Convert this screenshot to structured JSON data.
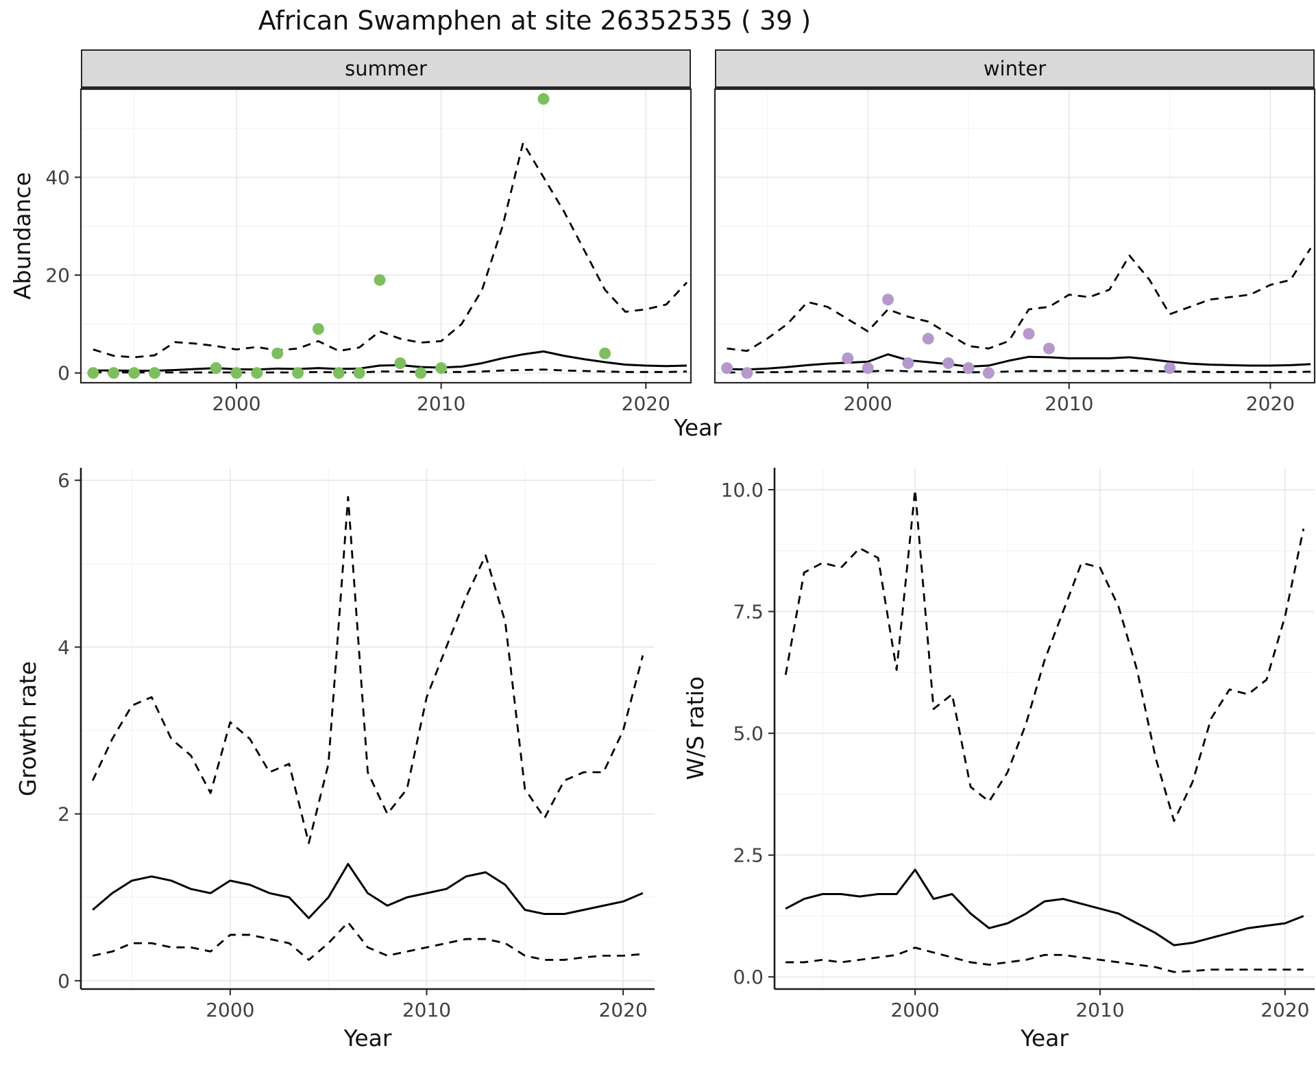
{
  "title": "African Swamphen at site 26352535 ( 39 )",
  "facets": {
    "summer": "summer",
    "winter": "winter"
  },
  "labels": {
    "abundance": "Abundance",
    "year": "Year",
    "growth_rate": "Growth rate",
    "ws_ratio": "W/S ratio"
  },
  "colors": {
    "summer_point": "#7dbf5e",
    "winter_point": "#b598cc",
    "line": "#000000",
    "grid_major": "#e7e7e7",
    "grid_minor": "#f3f3f3",
    "panel_border": "#262626",
    "axis_line": "#1a1a1a",
    "strip_bg": "#d9d9d9",
    "tick_text": "#404040"
  },
  "chart_data": [
    {
      "id": "summer",
      "type": "scatter+line",
      "facet_label": "summer",
      "xlabel": "Year",
      "ylabel": "Abundance",
      "xlim": [
        1992.4,
        2022.2
      ],
      "ylim": [
        -2,
        58
      ],
      "xticks": [
        2000,
        2010,
        2020
      ],
      "xtick_labels": [
        "2000",
        "2010",
        "2020"
      ],
      "xticks_minor": [
        1995,
        2005,
        2015
      ],
      "yticks": [
        0,
        20,
        40
      ],
      "ytick_labels": [
        "0",
        "20",
        "40"
      ],
      "yticks_minor": [
        10,
        30,
        50
      ],
      "show_y_labels": true,
      "point_color": "#7dbf5e",
      "points": {
        "x": [
          1993,
          1994,
          1995,
          1996,
          1999,
          2000,
          2001,
          2002,
          2003,
          2004,
          2005,
          2006,
          2007,
          2008,
          2009,
          2010,
          2015,
          2018
        ],
        "y": [
          0,
          0,
          0,
          0,
          1,
          0,
          0,
          4,
          0,
          9,
          0,
          0,
          19,
          2,
          0,
          1,
          56,
          4
        ]
      },
      "fit": {
        "x": [
          1993,
          1994,
          1995,
          1996,
          1997,
          1998,
          1999,
          2000,
          2001,
          2002,
          2003,
          2004,
          2005,
          2006,
          2007,
          2008,
          2009,
          2010,
          2011,
          2012,
          2013,
          2014,
          2015,
          2016,
          2017,
          2018,
          2019,
          2020,
          2021,
          2022
        ],
        "y": [
          0.5,
          0.5,
          0.45,
          0.45,
          0.6,
          0.8,
          1.0,
          0.75,
          0.7,
          0.9,
          0.8,
          1.0,
          0.8,
          0.9,
          1.5,
          1.6,
          1.2,
          1.1,
          1.3,
          2.0,
          3.0,
          3.8,
          4.4,
          3.5,
          2.8,
          2.2,
          1.7,
          1.5,
          1.4,
          1.5
        ]
      },
      "upper": {
        "x": [
          1993,
          1994,
          1995,
          1996,
          1997,
          1998,
          1999,
          2000,
          2001,
          2002,
          2003,
          2004,
          2005,
          2006,
          2007,
          2008,
          2009,
          2010,
          2011,
          2012,
          2013,
          2014,
          2015,
          2016,
          2017,
          2018,
          2019,
          2020,
          2021,
          2022
        ],
        "y": [
          4.8,
          3.5,
          3.2,
          3.6,
          6.3,
          6.0,
          5.5,
          4.8,
          5.3,
          4.6,
          5.0,
          6.5,
          4.5,
          5.2,
          8.5,
          7.0,
          6.2,
          6.5,
          10,
          17,
          30,
          47,
          40,
          33,
          25,
          17,
          12.5,
          13,
          14,
          18.5
        ]
      },
      "lower": {
        "x": [
          1993,
          1994,
          1995,
          1996,
          1997,
          1998,
          1999,
          2000,
          2001,
          2002,
          2003,
          2004,
          2005,
          2006,
          2007,
          2008,
          2009,
          2010,
          2011,
          2012,
          2013,
          2014,
          2015,
          2016,
          2017,
          2018,
          2019,
          2020,
          2021,
          2022
        ],
        "y": [
          0.1,
          0.1,
          0.1,
          0.1,
          0.1,
          0.1,
          0.1,
          0.1,
          0.1,
          0.1,
          0.1,
          0.2,
          0.1,
          0.1,
          0.3,
          0.3,
          0.2,
          0.2,
          0.2,
          0.3,
          0.5,
          0.6,
          0.7,
          0.5,
          0.4,
          0.3,
          0.2,
          0.2,
          0.2,
          0.3
        ]
      }
    },
    {
      "id": "winter",
      "type": "scatter+line",
      "facet_label": "winter",
      "xlabel": "Year",
      "ylabel": "Abundance",
      "xlim": [
        1992.4,
        2022.2
      ],
      "ylim": [
        -2,
        58
      ],
      "xticks": [
        2000,
        2010,
        2020
      ],
      "xtick_labels": [
        "2000",
        "2010",
        "2020"
      ],
      "xticks_minor": [
        1995,
        2005,
        2015
      ],
      "yticks": [
        0,
        20,
        40
      ],
      "ytick_labels": [
        "0",
        "20",
        "40"
      ],
      "yticks_minor": [
        10,
        30,
        50
      ],
      "show_y_labels": false,
      "point_color": "#b598cc",
      "points": {
        "x": [
          1993,
          1994,
          1999,
          2000,
          2001,
          2002,
          2003,
          2004,
          2005,
          2006,
          2008,
          2009,
          2015
        ],
        "y": [
          1,
          0,
          3,
          1,
          15,
          2,
          7,
          2,
          1,
          0,
          8,
          5,
          1
        ]
      },
      "fit": {
        "x": [
          1993,
          1994,
          1995,
          1996,
          1997,
          1998,
          1999,
          2000,
          2001,
          2002,
          2003,
          2004,
          2005,
          2006,
          2007,
          2008,
          2009,
          2010,
          2011,
          2012,
          2013,
          2014,
          2015,
          2016,
          2017,
          2018,
          2019,
          2020,
          2021,
          2022
        ],
        "y": [
          0.8,
          0.7,
          0.9,
          1.2,
          1.6,
          1.9,
          2.1,
          2.3,
          3.8,
          2.6,
          2.2,
          1.8,
          1.3,
          1.5,
          2.5,
          3.3,
          3.2,
          3.0,
          3.0,
          3.0,
          3.2,
          2.8,
          2.3,
          1.9,
          1.7,
          1.6,
          1.5,
          1.5,
          1.6,
          1.8
        ]
      },
      "upper": {
        "x": [
          1993,
          1994,
          1995,
          1996,
          1997,
          1998,
          1999,
          2000,
          2001,
          2002,
          2003,
          2004,
          2005,
          2006,
          2007,
          2008,
          2009,
          2010,
          2011,
          2012,
          2013,
          2014,
          2015,
          2016,
          2017,
          2018,
          2019,
          2020,
          2021,
          2022
        ],
        "y": [
          5.0,
          4.5,
          7.0,
          10.0,
          14.5,
          13.5,
          11.0,
          8.5,
          13.0,
          11.5,
          10.5,
          8.0,
          5.5,
          5.0,
          6.5,
          13.0,
          13.5,
          16.0,
          15.5,
          17.0,
          24.0,
          19.0,
          12.0,
          13.5,
          15.0,
          15.5,
          16.0,
          18.0,
          19.0,
          25.5
        ]
      },
      "lower": {
        "x": [
          1993,
          1994,
          1995,
          1996,
          1997,
          1998,
          1999,
          2000,
          2001,
          2002,
          2003,
          2004,
          2005,
          2006,
          2007,
          2008,
          2009,
          2010,
          2011,
          2012,
          2013,
          2014,
          2015,
          2016,
          2017,
          2018,
          2019,
          2020,
          2021,
          2022
        ],
        "y": [
          0.1,
          0.1,
          0.15,
          0.2,
          0.3,
          0.3,
          0.3,
          0.3,
          0.5,
          0.35,
          0.3,
          0.25,
          0.15,
          0.15,
          0.3,
          0.4,
          0.4,
          0.4,
          0.4,
          0.4,
          0.45,
          0.4,
          0.3,
          0.25,
          0.2,
          0.2,
          0.2,
          0.2,
          0.2,
          0.25
        ]
      }
    },
    {
      "id": "growth",
      "type": "line",
      "xlabel": "Year",
      "ylabel": "Growth rate",
      "xlim": [
        1992.4,
        2021.6
      ],
      "ylim": [
        -0.1,
        6.15
      ],
      "xticks": [
        2000,
        2010,
        2020
      ],
      "xtick_labels": [
        "2000",
        "2010",
        "2020"
      ],
      "xticks_minor": [
        1995,
        2005,
        2015
      ],
      "yticks": [
        0,
        2,
        4,
        6
      ],
      "ytick_labels": [
        "0",
        "2",
        "4",
        "6"
      ],
      "yticks_minor": [
        1,
        3,
        5
      ],
      "show_y_labels": true,
      "fit": {
        "x": [
          1993,
          1994,
          1995,
          1996,
          1997,
          1998,
          1999,
          2000,
          2001,
          2002,
          2003,
          2004,
          2005,
          2006,
          2007,
          2008,
          2009,
          2010,
          2011,
          2012,
          2013,
          2014,
          2015,
          2016,
          2017,
          2018,
          2019,
          2020,
          2021
        ],
        "y": [
          0.85,
          1.05,
          1.2,
          1.25,
          1.2,
          1.1,
          1.05,
          1.2,
          1.15,
          1.05,
          1.0,
          0.75,
          1.0,
          1.4,
          1.05,
          0.9,
          1.0,
          1.05,
          1.1,
          1.25,
          1.3,
          1.15,
          0.85,
          0.8,
          0.8,
          0.85,
          0.9,
          0.95,
          1.05
        ]
      },
      "upper": {
        "x": [
          1993,
          1994,
          1995,
          1996,
          1997,
          1998,
          1999,
          2000,
          2001,
          2002,
          2003,
          2004,
          2005,
          2006,
          2007,
          2008,
          2009,
          2010,
          2011,
          2012,
          2013,
          2014,
          2015,
          2016,
          2017,
          2018,
          2019,
          2020,
          2021
        ],
        "y": [
          2.4,
          2.9,
          3.3,
          3.4,
          2.9,
          2.7,
          2.25,
          3.1,
          2.9,
          2.5,
          2.6,
          1.65,
          2.6,
          5.8,
          2.5,
          2.0,
          2.3,
          3.4,
          4.0,
          4.6,
          5.1,
          4.3,
          2.3,
          1.95,
          2.4,
          2.5,
          2.5,
          3.0,
          3.9
        ]
      },
      "lower": {
        "x": [
          1993,
          1994,
          1995,
          1996,
          1997,
          1998,
          1999,
          2000,
          2001,
          2002,
          2003,
          2004,
          2005,
          2006,
          2007,
          2008,
          2009,
          2010,
          2011,
          2012,
          2013,
          2014,
          2015,
          2016,
          2017,
          2018,
          2019,
          2020,
          2021
        ],
        "y": [
          0.3,
          0.35,
          0.45,
          0.45,
          0.4,
          0.4,
          0.35,
          0.55,
          0.55,
          0.5,
          0.45,
          0.25,
          0.45,
          0.7,
          0.4,
          0.3,
          0.35,
          0.4,
          0.45,
          0.5,
          0.5,
          0.45,
          0.3,
          0.25,
          0.25,
          0.28,
          0.3,
          0.3,
          0.32
        ]
      }
    },
    {
      "id": "ws",
      "type": "line",
      "xlabel": "Year",
      "ylabel": "W/S ratio",
      "xlim": [
        1992.4,
        2021.6
      ],
      "ylim": [
        -0.25,
        10.45
      ],
      "xticks": [
        2000,
        2010,
        2020
      ],
      "xtick_labels": [
        "2000",
        "2010",
        "2020"
      ],
      "xticks_minor": [
        1995,
        2005,
        2015
      ],
      "yticks": [
        0,
        2.5,
        5,
        7.5,
        10
      ],
      "ytick_labels": [
        "0.0",
        "2.5",
        "5.0",
        "7.5",
        "10.0"
      ],
      "yticks_minor": [
        1.25,
        3.75,
        6.25,
        8.75
      ],
      "show_y_labels": true,
      "fit": {
        "x": [
          1993,
          1994,
          1995,
          1996,
          1997,
          1998,
          1999,
          2000,
          2001,
          2002,
          2003,
          2004,
          2005,
          2006,
          2007,
          2008,
          2009,
          2010,
          2011,
          2012,
          2013,
          2014,
          2015,
          2016,
          2017,
          2018,
          2019,
          2020,
          2021
        ],
        "y": [
          1.4,
          1.6,
          1.7,
          1.7,
          1.65,
          1.7,
          1.7,
          2.2,
          1.6,
          1.7,
          1.3,
          1.0,
          1.1,
          1.3,
          1.55,
          1.6,
          1.5,
          1.4,
          1.3,
          1.1,
          0.9,
          0.65,
          0.7,
          0.8,
          0.9,
          1.0,
          1.05,
          1.1,
          1.25
        ]
      },
      "upper": {
        "x": [
          1993,
          1994,
          1995,
          1996,
          1997,
          1998,
          1999,
          2000,
          2001,
          2002,
          2003,
          2004,
          2005,
          2006,
          2007,
          2008,
          2009,
          2010,
          2011,
          2012,
          2013,
          2014,
          2015,
          2016,
          2017,
          2018,
          2019,
          2020,
          2021
        ],
        "y": [
          6.2,
          8.3,
          8.5,
          8.4,
          8.8,
          8.6,
          6.3,
          10.0,
          5.5,
          5.8,
          3.9,
          3.6,
          4.2,
          5.2,
          6.5,
          7.5,
          8.5,
          8.4,
          7.6,
          6.3,
          4.5,
          3.2,
          4.0,
          5.3,
          5.9,
          5.8,
          6.1,
          7.4,
          9.2
        ]
      },
      "lower": {
        "x": [
          1993,
          1994,
          1995,
          1996,
          1997,
          1998,
          1999,
          2000,
          2001,
          2002,
          2003,
          2004,
          2005,
          2006,
          2007,
          2008,
          2009,
          2010,
          2011,
          2012,
          2013,
          2014,
          2015,
          2016,
          2017,
          2018,
          2019,
          2020,
          2021
        ],
        "y": [
          0.3,
          0.3,
          0.35,
          0.3,
          0.35,
          0.4,
          0.45,
          0.6,
          0.5,
          0.4,
          0.3,
          0.25,
          0.3,
          0.35,
          0.45,
          0.45,
          0.4,
          0.35,
          0.3,
          0.25,
          0.2,
          0.1,
          0.12,
          0.15,
          0.15,
          0.15,
          0.15,
          0.15,
          0.15
        ]
      }
    }
  ]
}
